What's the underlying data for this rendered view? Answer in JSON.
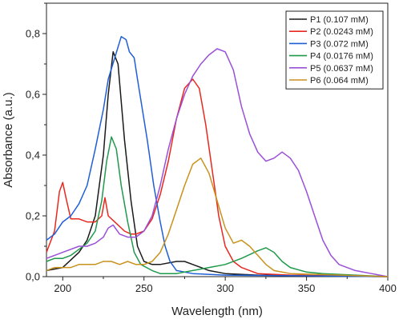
{
  "chart_data": {
    "type": "line",
    "xlabel": "Wavelength (nm)",
    "ylabel": "Absorbance (a.u.)",
    "xlim": [
      190,
      400
    ],
    "ylim": [
      0,
      0.9
    ],
    "xticks": [
      200,
      250,
      300,
      350,
      400
    ],
    "xtick_labels": [
      "200",
      "250",
      "300",
      "350",
      "400"
    ],
    "yticks": [
      0,
      0.2,
      0.4,
      0.6,
      0.8
    ],
    "ytick_labels": [
      "0,0",
      "0,2",
      "0,4",
      "0,6",
      "0,8"
    ],
    "legend_position": "top-right",
    "grid": false,
    "series": [
      {
        "name": "P1 (0.107 mM)",
        "color": "#1a1a1a",
        "points": [
          [
            190,
            0.02
          ],
          [
            200,
            0.03
          ],
          [
            210,
            0.08
          ],
          [
            215,
            0.12
          ],
          [
            220,
            0.2
          ],
          [
            225,
            0.4
          ],
          [
            228,
            0.6
          ],
          [
            231,
            0.74
          ],
          [
            234,
            0.7
          ],
          [
            238,
            0.45
          ],
          [
            242,
            0.25
          ],
          [
            246,
            0.1
          ],
          [
            250,
            0.05
          ],
          [
            255,
            0.04
          ],
          [
            260,
            0.04
          ],
          [
            270,
            0.05
          ],
          [
            275,
            0.05
          ],
          [
            280,
            0.04
          ],
          [
            290,
            0.02
          ],
          [
            300,
            0.01
          ],
          [
            320,
            0.005
          ],
          [
            360,
            0.002
          ],
          [
            400,
            0.0
          ]
        ]
      },
      {
        "name": "P2 (0.0243 mM)",
        "color": "#e8281e",
        "points": [
          [
            190,
            0.08
          ],
          [
            195,
            0.15
          ],
          [
            198,
            0.28
          ],
          [
            200,
            0.31
          ],
          [
            202,
            0.26
          ],
          [
            205,
            0.19
          ],
          [
            210,
            0.19
          ],
          [
            215,
            0.18
          ],
          [
            220,
            0.18
          ],
          [
            224,
            0.2
          ],
          [
            226,
            0.26
          ],
          [
            228,
            0.2
          ],
          [
            232,
            0.18
          ],
          [
            238,
            0.15
          ],
          [
            242,
            0.14
          ],
          [
            245,
            0.14
          ],
          [
            250,
            0.15
          ],
          [
            255,
            0.19
          ],
          [
            260,
            0.27
          ],
          [
            265,
            0.38
          ],
          [
            270,
            0.52
          ],
          [
            275,
            0.62
          ],
          [
            280,
            0.65
          ],
          [
            284,
            0.62
          ],
          [
            288,
            0.5
          ],
          [
            292,
            0.35
          ],
          [
            296,
            0.2
          ],
          [
            300,
            0.1
          ],
          [
            305,
            0.05
          ],
          [
            310,
            0.03
          ],
          [
            320,
            0.01
          ],
          [
            340,
            0.005
          ],
          [
            400,
            0.0
          ]
        ]
      },
      {
        "name": "P3 (0.072 mM)",
        "color": "#1f5fd6",
        "points": [
          [
            190,
            0.12
          ],
          [
            195,
            0.14
          ],
          [
            200,
            0.18
          ],
          [
            205,
            0.2
          ],
          [
            210,
            0.24
          ],
          [
            215,
            0.3
          ],
          [
            220,
            0.42
          ],
          [
            225,
            0.55
          ],
          [
            228,
            0.65
          ],
          [
            232,
            0.72
          ],
          [
            236,
            0.79
          ],
          [
            239,
            0.78
          ],
          [
            241,
            0.74
          ],
          [
            244,
            0.72
          ],
          [
            246,
            0.65
          ],
          [
            249,
            0.55
          ],
          [
            252,
            0.45
          ],
          [
            256,
            0.3
          ],
          [
            260,
            0.18
          ],
          [
            263,
            0.1
          ],
          [
            266,
            0.05
          ],
          [
            270,
            0.02
          ],
          [
            280,
            0.01
          ],
          [
            300,
            0.005
          ],
          [
            400,
            0.0
          ]
        ]
      },
      {
        "name": "P4 (0.0176 mM)",
        "color": "#1f9a4a",
        "points": [
          [
            190,
            0.05
          ],
          [
            195,
            0.06
          ],
          [
            200,
            0.06
          ],
          [
            205,
            0.07
          ],
          [
            210,
            0.09
          ],
          [
            215,
            0.11
          ],
          [
            220,
            0.15
          ],
          [
            224,
            0.25
          ],
          [
            227,
            0.38
          ],
          [
            230,
            0.46
          ],
          [
            233,
            0.42
          ],
          [
            236,
            0.3
          ],
          [
            240,
            0.18
          ],
          [
            244,
            0.08
          ],
          [
            248,
            0.04
          ],
          [
            255,
            0.02
          ],
          [
            260,
            0.01
          ],
          [
            270,
            0.01
          ],
          [
            280,
            0.02
          ],
          [
            290,
            0.03
          ],
          [
            300,
            0.04
          ],
          [
            310,
            0.06
          ],
          [
            320,
            0.085
          ],
          [
            325,
            0.095
          ],
          [
            330,
            0.08
          ],
          [
            335,
            0.05
          ],
          [
            340,
            0.03
          ],
          [
            350,
            0.015
          ],
          [
            360,
            0.01
          ],
          [
            380,
            0.005
          ],
          [
            400,
            0.0
          ]
        ]
      },
      {
        "name": "P5 (0.0637 mM)",
        "color": "#9b4fd8",
        "points": [
          [
            190,
            0.06
          ],
          [
            195,
            0.07
          ],
          [
            200,
            0.08
          ],
          [
            205,
            0.09
          ],
          [
            210,
            0.1
          ],
          [
            215,
            0.1
          ],
          [
            220,
            0.11
          ],
          [
            225,
            0.13
          ],
          [
            228,
            0.16
          ],
          [
            231,
            0.17
          ],
          [
            235,
            0.14
          ],
          [
            240,
            0.13
          ],
          [
            245,
            0.13
          ],
          [
            250,
            0.15
          ],
          [
            255,
            0.2
          ],
          [
            260,
            0.3
          ],
          [
            265,
            0.42
          ],
          [
            270,
            0.52
          ],
          [
            275,
            0.6
          ],
          [
            280,
            0.66
          ],
          [
            285,
            0.7
          ],
          [
            290,
            0.73
          ],
          [
            295,
            0.75
          ],
          [
            300,
            0.74
          ],
          [
            305,
            0.68
          ],
          [
            310,
            0.56
          ],
          [
            315,
            0.47
          ],
          [
            320,
            0.41
          ],
          [
            325,
            0.38
          ],
          [
            330,
            0.39
          ],
          [
            335,
            0.41
          ],
          [
            340,
            0.39
          ],
          [
            345,
            0.35
          ],
          [
            350,
            0.28
          ],
          [
            355,
            0.2
          ],
          [
            360,
            0.12
          ],
          [
            365,
            0.07
          ],
          [
            370,
            0.04
          ],
          [
            380,
            0.02
          ],
          [
            390,
            0.01
          ],
          [
            400,
            0.0
          ]
        ]
      },
      {
        "name": "P6 (0.064 mM)",
        "color": "#c9921e",
        "points": [
          [
            190,
            0.02
          ],
          [
            195,
            0.03
          ],
          [
            200,
            0.03
          ],
          [
            205,
            0.03
          ],
          [
            210,
            0.04
          ],
          [
            215,
            0.04
          ],
          [
            220,
            0.04
          ],
          [
            225,
            0.05
          ],
          [
            230,
            0.05
          ],
          [
            235,
            0.04
          ],
          [
            240,
            0.05
          ],
          [
            245,
            0.04
          ],
          [
            250,
            0.04
          ],
          [
            255,
            0.05
          ],
          [
            260,
            0.08
          ],
          [
            265,
            0.14
          ],
          [
            270,
            0.22
          ],
          [
            275,
            0.3
          ],
          [
            280,
            0.37
          ],
          [
            285,
            0.39
          ],
          [
            290,
            0.34
          ],
          [
            295,
            0.25
          ],
          [
            300,
            0.16
          ],
          [
            305,
            0.11
          ],
          [
            310,
            0.12
          ],
          [
            315,
            0.1
          ],
          [
            320,
            0.07
          ],
          [
            325,
            0.04
          ],
          [
            330,
            0.02
          ],
          [
            340,
            0.01
          ],
          [
            400,
            0.0
          ]
        ]
      }
    ]
  }
}
